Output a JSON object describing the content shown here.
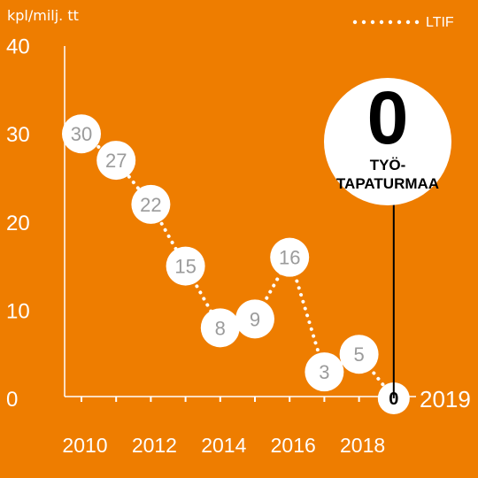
{
  "chart_data": {
    "type": "line",
    "ylabel": "kpl/milj. tt",
    "legend": {
      "label": "LTIF",
      "placement": "top-right",
      "style": "dotted"
    },
    "x": [
      2010,
      2011,
      2012,
      2013,
      2014,
      2015,
      2016,
      2017,
      2018,
      2019
    ],
    "series": [
      {
        "name": "LTIF",
        "values": [
          30,
          27,
          22,
          15,
          8,
          9,
          16,
          3,
          5,
          0
        ]
      }
    ],
    "data_labels": [
      "30",
      "27",
      "22",
      "15",
      "8",
      "9",
      "16",
      "3",
      "5",
      "0"
    ],
    "yticks": [
      "0",
      "10",
      "20",
      "30",
      "40"
    ],
    "xticks": [
      "2010",
      "2012",
      "2014",
      "2016",
      "2018"
    ],
    "ylim": [
      0,
      40
    ],
    "xlim": [
      2010,
      2019
    ],
    "last_point_label": "2019",
    "callout": {
      "value": "0",
      "line1": "TYÖ-",
      "line2": "TAPATURMAA"
    },
    "colors": {
      "background": "#ee7d00",
      "foreground": "#ffffff",
      "label_text": "#9b9b9b",
      "highlight_text": "#000000"
    }
  }
}
